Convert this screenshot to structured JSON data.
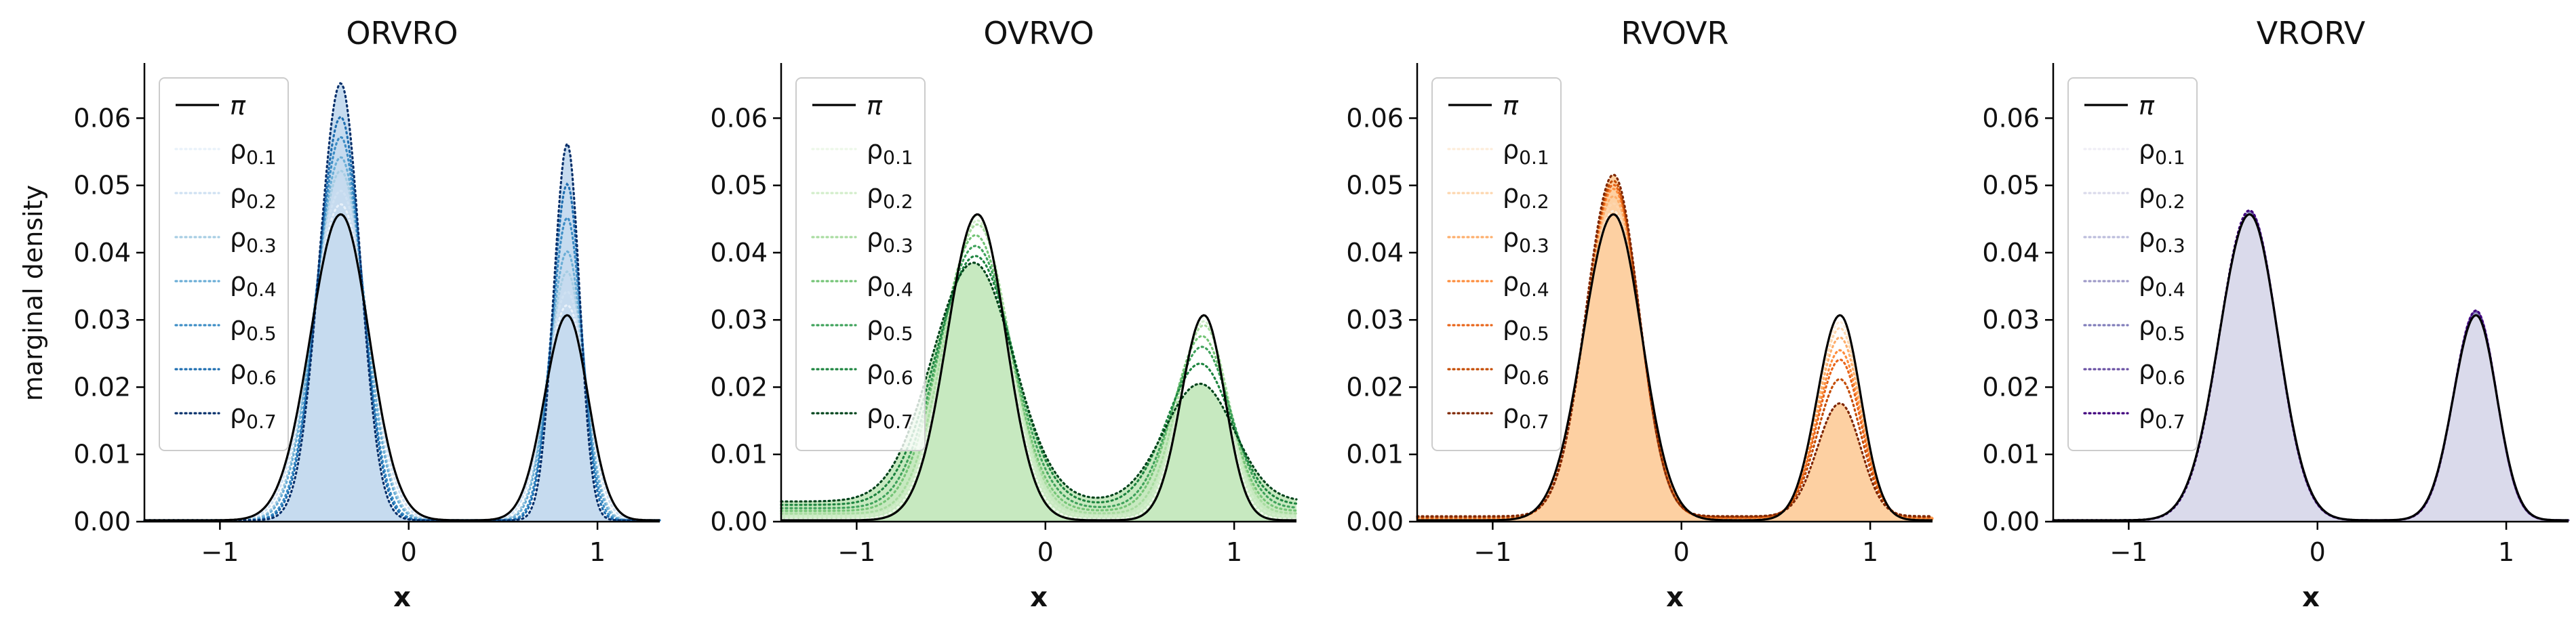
{
  "chart_data": [
    {
      "type": "line",
      "title": "ORVRO",
      "xlabel": "x",
      "ylabel": "marginal density",
      "xlim": [
        -1.4,
        1.33
      ],
      "ylim": [
        0,
        0.068
      ],
      "xticks": [
        -1,
        0,
        1
      ],
      "yticks": [
        0.0,
        0.01,
        0.02,
        0.03,
        0.04,
        0.05,
        0.06
      ],
      "xtick_labels": [
        "−1",
        "0",
        "1"
      ],
      "ytick_labels": [
        "0.00",
        "0.01",
        "0.02",
        "0.03",
        "0.04",
        "0.05",
        "0.06"
      ],
      "legend": {
        "position": "upper-left",
        "entries": [
          "π",
          "ρ0.1",
          "ρ0.2",
          "ρ0.3",
          "ρ0.4",
          "ρ0.5",
          "ρ0.6",
          "ρ0.7"
        ]
      },
      "fill_color": "#c6dbef",
      "line_colors": [
        "#000000",
        "#e8f1fa",
        "#cfe1f2",
        "#a6cde3",
        "#6baed6",
        "#3d8dc5",
        "#1f6eb0",
        "#08306b"
      ],
      "series": [
        {
          "name": "π",
          "peaks": [
            {
              "mu": -0.36,
              "h": 0.0455,
              "sl": 0.16,
              "sr": 0.15
            },
            {
              "mu": 0.84,
              "h": 0.0305,
              "sl": 0.12,
              "sr": 0.11
            }
          ],
          "floor": 0.0002
        },
        {
          "name": "ρ0.1",
          "peaks": [
            {
              "mu": -0.36,
              "h": 0.047,
              "sl": 0.155,
              "sr": 0.145
            },
            {
              "mu": 0.84,
              "h": 0.032,
              "sl": 0.115,
              "sr": 0.105
            }
          ],
          "floor": 0.0002
        },
        {
          "name": "ρ0.2",
          "peaks": [
            {
              "mu": -0.36,
              "h": 0.049,
              "sl": 0.15,
              "sr": 0.14
            },
            {
              "mu": 0.84,
              "h": 0.034,
              "sl": 0.11,
              "sr": 0.1
            }
          ],
          "floor": 0.0002
        },
        {
          "name": "ρ0.3",
          "peaks": [
            {
              "mu": -0.36,
              "h": 0.052,
              "sl": 0.14,
              "sr": 0.13
            },
            {
              "mu": 0.84,
              "h": 0.037,
              "sl": 0.1,
              "sr": 0.09
            }
          ],
          "floor": 0.0002
        },
        {
          "name": "ρ0.4",
          "peaks": [
            {
              "mu": -0.36,
              "h": 0.054,
              "sl": 0.135,
              "sr": 0.125
            },
            {
              "mu": 0.84,
              "h": 0.04,
              "sl": 0.095,
              "sr": 0.085
            }
          ],
          "floor": 0.0002
        },
        {
          "name": "ρ0.5",
          "peaks": [
            {
              "mu": -0.36,
              "h": 0.057,
              "sl": 0.125,
              "sr": 0.115
            },
            {
              "mu": 0.84,
              "h": 0.045,
              "sl": 0.085,
              "sr": 0.078
            }
          ],
          "floor": 0.0002
        },
        {
          "name": "ρ0.6",
          "peaks": [
            {
              "mu": -0.36,
              "h": 0.06,
              "sl": 0.12,
              "sr": 0.11
            },
            {
              "mu": 0.84,
              "h": 0.05,
              "sl": 0.08,
              "sr": 0.072
            }
          ],
          "floor": 0.0002
        },
        {
          "name": "ρ0.7",
          "peaks": [
            {
              "mu": -0.36,
              "h": 0.065,
              "sl": 0.112,
              "sr": 0.102
            },
            {
              "mu": 0.84,
              "h": 0.056,
              "sl": 0.072,
              "sr": 0.065
            }
          ],
          "floor": 0.0002
        }
      ]
    },
    {
      "type": "line",
      "title": "OVRVO",
      "xlabel": "x",
      "ylabel": "",
      "xlim": [
        -1.4,
        1.33
      ],
      "ylim": [
        0,
        0.068
      ],
      "xticks": [
        -1,
        0,
        1
      ],
      "yticks": [
        0.0,
        0.01,
        0.02,
        0.03,
        0.04,
        0.05,
        0.06
      ],
      "xtick_labels": [
        "−1",
        "0",
        "1"
      ],
      "ytick_labels": [
        "0.00",
        "0.01",
        "0.02",
        "0.03",
        "0.04",
        "0.05",
        "0.06"
      ],
      "legend": {
        "position": "upper-left",
        "entries": [
          "π",
          "ρ0.1",
          "ρ0.2",
          "ρ0.3",
          "ρ0.4",
          "ρ0.5",
          "ρ0.6",
          "ρ0.7"
        ]
      },
      "fill_color": "#c7e9c0",
      "line_colors": [
        "#000000",
        "#ecf7e8",
        "#d2edca",
        "#a8dca0",
        "#74c476",
        "#3fa25b",
        "#1e8540",
        "#00441b"
      ],
      "series": [
        {
          "name": "π",
          "peaks": [
            {
              "mu": -0.36,
              "h": 0.0455,
              "sl": 0.16,
              "sr": 0.15
            },
            {
              "mu": 0.84,
              "h": 0.0305,
              "sl": 0.12,
              "sr": 0.11
            }
          ],
          "floor": 0.0002
        },
        {
          "name": "ρ0.1",
          "peaks": [
            {
              "mu": -0.36,
              "h": 0.045,
              "sl": 0.165,
              "sr": 0.155
            },
            {
              "mu": 0.84,
              "h": 0.03,
              "sl": 0.125,
              "sr": 0.115
            }
          ],
          "floor": 0.0004
        },
        {
          "name": "ρ0.2",
          "peaks": [
            {
              "mu": -0.36,
              "h": 0.044,
              "sl": 0.17,
              "sr": 0.16
            },
            {
              "mu": 0.84,
              "h": 0.029,
              "sl": 0.13,
              "sr": 0.12
            }
          ],
          "floor": 0.0008
        },
        {
          "name": "ρ0.3",
          "peaks": [
            {
              "mu": -0.36,
              "h": 0.043,
              "sl": 0.175,
              "sr": 0.17
            },
            {
              "mu": 0.84,
              "h": 0.028,
              "sl": 0.14,
              "sr": 0.13
            }
          ],
          "floor": 0.0012
        },
        {
          "name": "ρ0.4",
          "peaks": [
            {
              "mu": -0.37,
              "h": 0.041,
              "sl": 0.185,
              "sr": 0.18
            },
            {
              "mu": 0.83,
              "h": 0.026,
              "sl": 0.15,
              "sr": 0.14
            }
          ],
          "floor": 0.0016
        },
        {
          "name": "ρ0.5",
          "peaks": [
            {
              "mu": -0.37,
              "h": 0.039,
              "sl": 0.195,
              "sr": 0.19
            },
            {
              "mu": 0.83,
              "h": 0.024,
              "sl": 0.16,
              "sr": 0.15
            }
          ],
          "floor": 0.002
        },
        {
          "name": "ρ0.6",
          "peaks": [
            {
              "mu": -0.37,
              "h": 0.037,
              "sl": 0.21,
              "sr": 0.2
            },
            {
              "mu": 0.82,
              "h": 0.021,
              "sl": 0.175,
              "sr": 0.165
            }
          ],
          "floor": 0.0025
        },
        {
          "name": "ρ0.7",
          "peaks": [
            {
              "mu": -0.38,
              "h": 0.0355,
              "sl": 0.22,
              "sr": 0.21
            },
            {
              "mu": 0.82,
              "h": 0.0175,
              "sl": 0.19,
              "sr": 0.18
            }
          ],
          "floor": 0.003
        }
      ]
    },
    {
      "type": "line",
      "title": "RVOVR",
      "xlabel": "x",
      "ylabel": "",
      "xlim": [
        -1.4,
        1.33
      ],
      "ylim": [
        0,
        0.068
      ],
      "xticks": [
        -1,
        0,
        1
      ],
      "yticks": [
        0.0,
        0.01,
        0.02,
        0.03,
        0.04,
        0.05,
        0.06
      ],
      "xtick_labels": [
        "−1",
        "0",
        "1"
      ],
      "ytick_labels": [
        "0.00",
        "0.01",
        "0.02",
        "0.03",
        "0.04",
        "0.05",
        "0.06"
      ],
      "legend": {
        "position": "upper-left",
        "entries": [
          "π",
          "ρ0.1",
          "ρ0.2",
          "ρ0.3",
          "ρ0.4",
          "ρ0.5",
          "ρ0.6",
          "ρ0.7"
        ]
      },
      "fill_color": "#fdd0a2",
      "line_colors": [
        "#000000",
        "#fdecd9",
        "#fdd6ae",
        "#fdae6b",
        "#fd8d3c",
        "#e8651a",
        "#c44c04",
        "#7f2704"
      ],
      "series": [
        {
          "name": "π",
          "peaks": [
            {
              "mu": -0.36,
              "h": 0.0455,
              "sl": 0.16,
              "sr": 0.15
            },
            {
              "mu": 0.84,
              "h": 0.0305,
              "sl": 0.12,
              "sr": 0.11
            }
          ],
          "floor": 0.0002
        },
        {
          "name": "ρ0.1",
          "peaks": [
            {
              "mu": -0.36,
              "h": 0.046,
              "sl": 0.158,
              "sr": 0.148
            },
            {
              "mu": 0.84,
              "h": 0.0295,
              "sl": 0.12,
              "sr": 0.11
            }
          ],
          "floor": 0.0002
        },
        {
          "name": "ρ0.2",
          "peaks": [
            {
              "mu": -0.36,
              "h": 0.047,
              "sl": 0.155,
              "sr": 0.145
            },
            {
              "mu": 0.84,
              "h": 0.0285,
              "sl": 0.12,
              "sr": 0.11
            }
          ],
          "floor": 0.0003
        },
        {
          "name": "ρ0.3",
          "peaks": [
            {
              "mu": -0.36,
              "h": 0.048,
              "sl": 0.152,
              "sr": 0.142
            },
            {
              "mu": 0.84,
              "h": 0.027,
              "sl": 0.12,
              "sr": 0.11
            }
          ],
          "floor": 0.0004
        },
        {
          "name": "ρ0.4",
          "peaks": [
            {
              "mu": -0.36,
              "h": 0.049,
              "sl": 0.15,
              "sr": 0.14
            },
            {
              "mu": 0.84,
              "h": 0.025,
              "sl": 0.12,
              "sr": 0.11
            }
          ],
          "floor": 0.0005
        },
        {
          "name": "ρ0.5",
          "peaks": [
            {
              "mu": -0.36,
              "h": 0.0495,
              "sl": 0.148,
              "sr": 0.138
            },
            {
              "mu": 0.84,
              "h": 0.0235,
              "sl": 0.12,
              "sr": 0.11
            }
          ],
          "floor": 0.0006
        },
        {
          "name": "ρ0.6",
          "peaks": [
            {
              "mu": -0.36,
              "h": 0.05,
              "sl": 0.146,
              "sr": 0.136
            },
            {
              "mu": 0.84,
              "h": 0.0205,
              "sl": 0.12,
              "sr": 0.11
            }
          ],
          "floor": 0.0007
        },
        {
          "name": "ρ0.7",
          "peaks": [
            {
              "mu": -0.36,
              "h": 0.0508,
              "sl": 0.145,
              "sr": 0.135
            },
            {
              "mu": 0.84,
              "h": 0.0168,
              "sl": 0.12,
              "sr": 0.11
            }
          ],
          "floor": 0.0008
        }
      ]
    },
    {
      "type": "line",
      "title": "VRORV",
      "xlabel": "x",
      "ylabel": "",
      "xlim": [
        -1.4,
        1.33
      ],
      "ylim": [
        0,
        0.068
      ],
      "xticks": [
        -1,
        0,
        1
      ],
      "yticks": [
        0.0,
        0.01,
        0.02,
        0.03,
        0.04,
        0.05,
        0.06
      ],
      "xtick_labels": [
        "−1",
        "0",
        "1"
      ],
      "ytick_labels": [
        "0.00",
        "0.01",
        "0.02",
        "0.03",
        "0.04",
        "0.05",
        "0.06"
      ],
      "legend": {
        "position": "upper-left",
        "entries": [
          "π",
          "ρ0.1",
          "ρ0.2",
          "ρ0.3",
          "ρ0.4",
          "ρ0.5",
          "ρ0.6",
          "ρ0.7"
        ]
      },
      "fill_color": "#dadaeb",
      "line_colors": [
        "#000000",
        "#efedf5",
        "#dadaeb",
        "#bcbddc",
        "#9e9ac8",
        "#807dba",
        "#6a51a3",
        "#3f007d"
      ],
      "series": [
        {
          "name": "π",
          "peaks": [
            {
              "mu": -0.36,
              "h": 0.0455,
              "sl": 0.16,
              "sr": 0.15
            },
            {
              "mu": 0.84,
              "h": 0.0305,
              "sl": 0.12,
              "sr": 0.11
            }
          ],
          "floor": 0.0002
        },
        {
          "name": "ρ0.1",
          "peaks": [
            {
              "mu": -0.36,
              "h": 0.0455,
              "sl": 0.16,
              "sr": 0.15
            },
            {
              "mu": 0.84,
              "h": 0.0305,
              "sl": 0.12,
              "sr": 0.11
            }
          ],
          "floor": 0.0002
        },
        {
          "name": "ρ0.2",
          "peaks": [
            {
              "mu": -0.36,
              "h": 0.0456,
              "sl": 0.16,
              "sr": 0.15
            },
            {
              "mu": 0.84,
              "h": 0.0306,
              "sl": 0.12,
              "sr": 0.11
            }
          ],
          "floor": 0.0002
        },
        {
          "name": "ρ0.3",
          "peaks": [
            {
              "mu": -0.36,
              "h": 0.0457,
              "sl": 0.16,
              "sr": 0.15
            },
            {
              "mu": 0.84,
              "h": 0.0307,
              "sl": 0.12,
              "sr": 0.11
            }
          ],
          "floor": 0.0002
        },
        {
          "name": "ρ0.4",
          "peaks": [
            {
              "mu": -0.36,
              "h": 0.0458,
              "sl": 0.159,
              "sr": 0.149
            },
            {
              "mu": 0.84,
              "h": 0.0308,
              "sl": 0.119,
              "sr": 0.109
            }
          ],
          "floor": 0.0002
        },
        {
          "name": "ρ0.5",
          "peaks": [
            {
              "mu": -0.36,
              "h": 0.0459,
              "sl": 0.159,
              "sr": 0.149
            },
            {
              "mu": 0.84,
              "h": 0.031,
              "sl": 0.119,
              "sr": 0.109
            }
          ],
          "floor": 0.0002
        },
        {
          "name": "ρ0.6",
          "peaks": [
            {
              "mu": -0.36,
              "h": 0.046,
              "sl": 0.158,
              "sr": 0.148
            },
            {
              "mu": 0.84,
              "h": 0.0311,
              "sl": 0.118,
              "sr": 0.108
            }
          ],
          "floor": 0.0002
        },
        {
          "name": "ρ0.7",
          "peaks": [
            {
              "mu": -0.36,
              "h": 0.0461,
              "sl": 0.158,
              "sr": 0.148
            },
            {
              "mu": 0.84,
              "h": 0.0312,
              "sl": 0.118,
              "sr": 0.108
            }
          ],
          "floor": 0.0002
        }
      ]
    }
  ]
}
